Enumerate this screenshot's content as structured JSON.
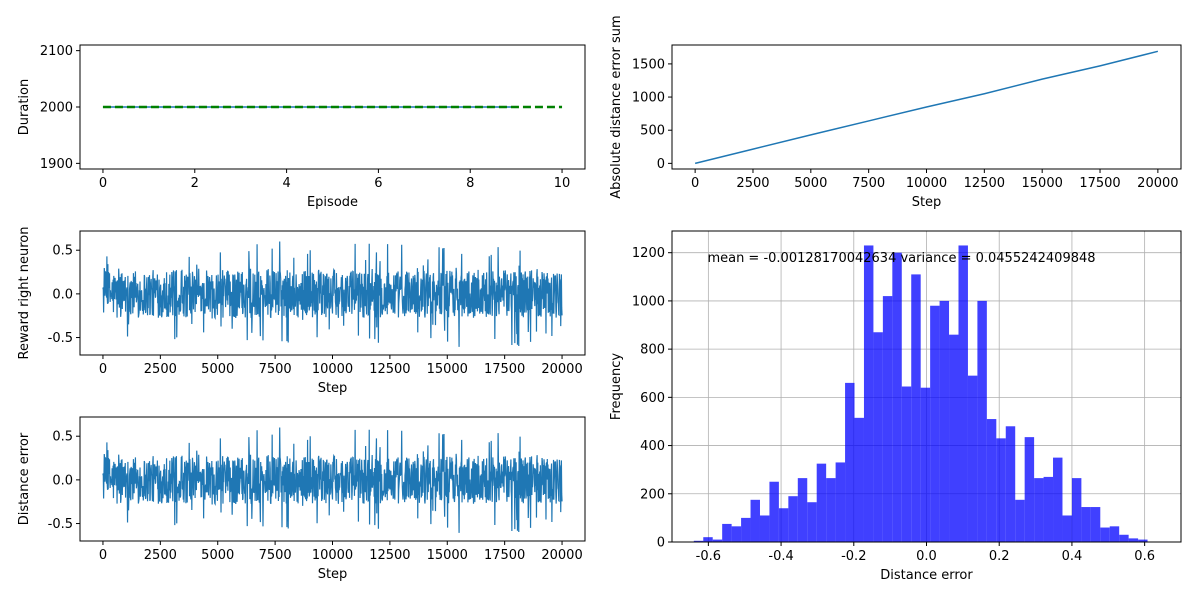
{
  "chart_data": [
    {
      "id": "duration",
      "type": "line",
      "xlabel": "Episode",
      "ylabel": "Duration",
      "xlim": [
        -0.5,
        10.5
      ],
      "ylim": [
        1890,
        2110
      ],
      "xticks": [
        0,
        2,
        4,
        6,
        8,
        10
      ],
      "yticks": [
        1900,
        2000,
        2100
      ],
      "series": [
        {
          "values_x": [
            0,
            9
          ],
          "values_y": [
            2000,
            2000
          ],
          "color": "#1f77b4",
          "style": "solid"
        },
        {
          "values_x": [
            0,
            10
          ],
          "values_y": [
            2000,
            2000
          ],
          "color": "#008000",
          "style": "dashed"
        }
      ],
      "grid": false
    },
    {
      "id": "abs-error-sum",
      "type": "line",
      "xlabel": "Step",
      "ylabel": "Absolute distance error sum",
      "xlim": [
        -1000,
        21000
      ],
      "ylim": [
        -85,
        1785
      ],
      "xticks": [
        0,
        2500,
        5000,
        7500,
        10000,
        12500,
        15000,
        17500,
        20000
      ],
      "yticks": [
        0,
        500,
        1000,
        1500
      ],
      "series": [
        {
          "x": [
            0,
            2500,
            5000,
            7500,
            10000,
            12500,
            15000,
            17500,
            20000
          ],
          "y": [
            0,
            215,
            430,
            640,
            850,
            1050,
            1270,
            1470,
            1690
          ],
          "color": "#1f77b4"
        }
      ],
      "grid": false
    },
    {
      "id": "reward-right",
      "type": "line",
      "xlabel": "Step",
      "ylabel": "Reward right neuron",
      "xlim": [
        -1000,
        21000
      ],
      "ylim": [
        -0.7,
        0.72
      ],
      "xticks": [
        0,
        2500,
        5000,
        7500,
        10000,
        12500,
        15000,
        17500,
        20000
      ],
      "yticks": [
        -0.5,
        0.0,
        0.5
      ],
      "series": [
        {
          "description_range": [
            -0.64,
            0.64
          ],
          "color": "#1f77b4",
          "n_steps": 20000
        }
      ],
      "grid": false
    },
    {
      "id": "distance-error",
      "type": "line",
      "xlabel": "Step",
      "ylabel": "Distance error",
      "xlim": [
        -1000,
        21000
      ],
      "ylim": [
        -0.7,
        0.72
      ],
      "xticks": [
        0,
        2500,
        5000,
        7500,
        10000,
        12500,
        15000,
        17500,
        20000
      ],
      "yticks": [
        -0.5,
        0.0,
        0.5
      ],
      "series": [
        {
          "description_range": [
            -0.64,
            0.64
          ],
          "color": "#1f77b4",
          "n_steps": 20000
        }
      ],
      "grid": false
    },
    {
      "id": "histogram",
      "type": "bar",
      "xlabel": "Distance error",
      "ylabel": "Frequency",
      "xlim": [
        -0.7,
        0.7
      ],
      "ylim": [
        0,
        1290
      ],
      "xticks": [
        -0.6,
        -0.4,
        -0.2,
        0.0,
        0.2,
        0.4,
        0.6
      ],
      "yticks": [
        0,
        200,
        400,
        600,
        800,
        1000,
        1200
      ],
      "annotation": "mean = -0.00128170042634 variance = 0.0455242409848",
      "bin_start": -0.64,
      "bin_width": 0.026,
      "counts": [
        5,
        20,
        10,
        75,
        65,
        100,
        175,
        110,
        250,
        140,
        190,
        265,
        165,
        325,
        265,
        330,
        660,
        515,
        1230,
        870,
        1020,
        1200,
        645,
        1110,
        640,
        980,
        1000,
        860,
        1230,
        690,
        1000,
        510,
        430,
        480,
        175,
        435,
        265,
        270,
        350,
        110,
        265,
        145,
        145,
        60,
        65,
        30,
        15,
        10
      ],
      "color": "#0000ff",
      "grid": true
    }
  ]
}
